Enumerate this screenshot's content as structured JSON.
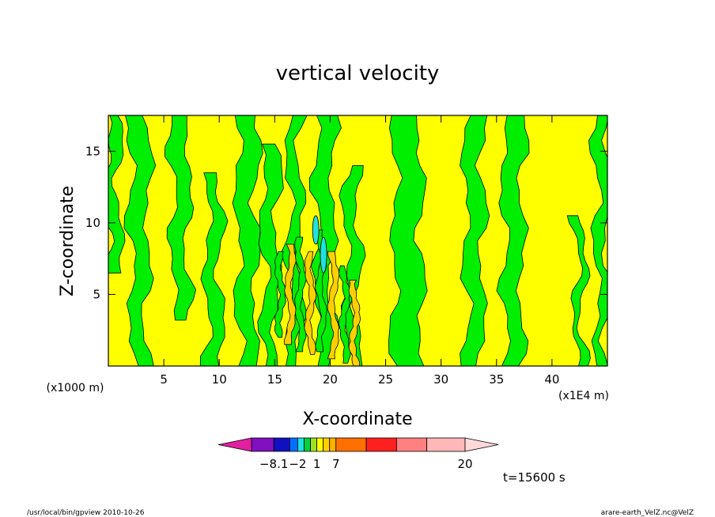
{
  "chart_data": {
    "type": "heatmap",
    "title": "vertical velocity",
    "xlabel": "X-coordinate",
    "ylabel": "Z-coordinate",
    "x_unit_label": "(x1E4 m)",
    "y_unit_label": "(x1000 m)",
    "xlim": [
      0,
      45
    ],
    "ylim": [
      0,
      17.5
    ],
    "x_ticks": [
      5,
      10,
      15,
      20,
      25,
      30,
      35,
      40
    ],
    "y_ticks": [
      5,
      10,
      15
    ],
    "time_label": "t=15600 s",
    "colorbar": {
      "levels": [
        -8.1,
        -2,
        1,
        7,
        20
      ],
      "colors": [
        "#e020a0",
        "#8010c0",
        "#1010c0",
        "#0070ff",
        "#20e0e0",
        "#00d040",
        "#a0e020",
        "#ffff00",
        "#ffd000",
        "#ffb000",
        "#ff7000",
        "#ff2020",
        "#ff8080",
        "#ffb8b8",
        "#ffd8d8"
      ]
    },
    "field_colors": {
      "background": "#ffff00",
      "updraft": "#00ee00",
      "core": "#20e0e0"
    },
    "bands": [
      {
        "x": 0.4,
        "bottom": 6.5,
        "w0": 1.3,
        "w1": 0.9,
        "top": 17.5
      },
      {
        "x": 2.8,
        "bottom": 0,
        "w0": 1.2,
        "w1": 1.8,
        "top": 17.5
      },
      {
        "x": 6.5,
        "bottom": 3.2,
        "w0": 1.2,
        "w1": 1.6,
        "top": 17.5
      },
      {
        "x": 9.5,
        "bottom": 0,
        "w0": 1.4,
        "w1": 1.0,
        "top": 13.5
      },
      {
        "x": 12.5,
        "bottom": 0,
        "w0": 1.4,
        "w1": 1.8,
        "top": 17.5
      },
      {
        "x": 14.6,
        "bottom": 0,
        "w0": 1.0,
        "w1": 1.4,
        "top": 15.5
      },
      {
        "x": 16.8,
        "bottom": 0,
        "w0": 1.0,
        "w1": 1.0,
        "top": 17.5
      },
      {
        "x": 19.5,
        "bottom": 0,
        "w0": 1.2,
        "w1": 1.6,
        "top": 17.5
      },
      {
        "x": 22.0,
        "bottom": 0,
        "w0": 0.9,
        "w1": 1.2,
        "top": 14.0
      },
      {
        "x": 27.0,
        "bottom": 0,
        "w0": 2.6,
        "w1": 2.2,
        "top": 17.5
      },
      {
        "x": 33.0,
        "bottom": 0,
        "w0": 1.4,
        "w1": 1.6,
        "top": 17.5
      },
      {
        "x": 36.5,
        "bottom": 0,
        "w0": 1.4,
        "w1": 1.8,
        "top": 17.5
      },
      {
        "x": 42.5,
        "bottom": 0,
        "w0": 0.6,
        "w1": 0.7,
        "top": 10.5
      },
      {
        "x": 44.5,
        "bottom": 0,
        "w0": 0.7,
        "w1": 1.2,
        "top": 17.5
      }
    ],
    "streaks": [
      {
        "x": 15.5,
        "bottom": 2.0,
        "top": 8.0
      },
      {
        "x": 16.4,
        "bottom": 1.5,
        "top": 8.5
      },
      {
        "x": 17.3,
        "bottom": 1.0,
        "top": 9.0
      },
      {
        "x": 18.2,
        "bottom": 0.8,
        "top": 8.0
      },
      {
        "x": 19.2,
        "bottom": 1.0,
        "top": 9.5
      },
      {
        "x": 20.3,
        "bottom": 0.5,
        "top": 8.0
      },
      {
        "x": 21.3,
        "bottom": 0.2,
        "top": 7.0
      },
      {
        "x": 22.2,
        "bottom": 0.0,
        "top": 6.0
      }
    ],
    "cores": [
      {
        "x": 18.7,
        "bottom": 8.5,
        "top": 10.5
      },
      {
        "x": 19.4,
        "bottom": 6.5,
        "top": 9.0
      }
    ]
  },
  "footer": {
    "left": "/usr/local/bin/gpview  2010-10-26",
    "right": "arare-earth_VelZ.nc@VelZ"
  }
}
